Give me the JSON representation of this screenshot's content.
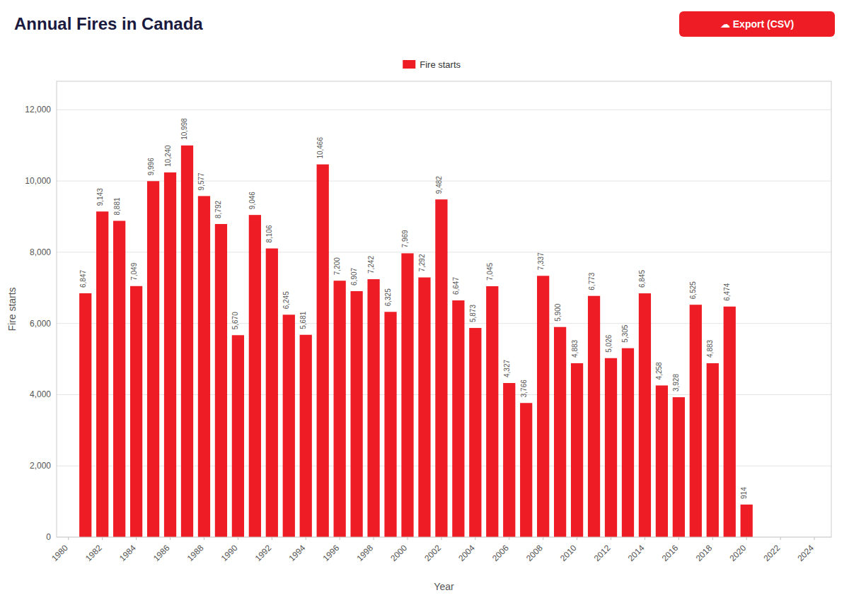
{
  "chart_data": {
    "type": "bar",
    "title": "Annual Fires in Canada",
    "xlabel": "Year",
    "ylabel": "Fire starts",
    "x": [
      1981,
      1982,
      1983,
      1984,
      1985,
      1986,
      1987,
      1988,
      1989,
      1990,
      1991,
      1992,
      1993,
      1994,
      1995,
      1996,
      1997,
      1998,
      1999,
      2000,
      2001,
      2002,
      2003,
      2004,
      2005,
      2006,
      2007,
      2008,
      2009,
      2010,
      2011,
      2012,
      2013,
      2014,
      2015,
      2016,
      2017,
      2018,
      2019,
      2020
    ],
    "series": [
      {
        "name": "Fire starts",
        "color": "#ee1c25",
        "values": [
          6847,
          9143,
          8881,
          7049,
          9996,
          10240,
          10998,
          9577,
          8792,
          5670,
          9046,
          8106,
          6245,
          5681,
          10466,
          7200,
          6907,
          7242,
          6325,
          7969,
          7292,
          9482,
          6647,
          5873,
          7045,
          4327,
          3766,
          7337,
          5900,
          4883,
          6773,
          5026,
          5305,
          6845,
          4258,
          3928,
          6525,
          4883,
          6474,
          914
        ],
        "value_labels": [
          "6,847",
          "9,143",
          "8,881",
          "7,049",
          "9,996",
          "10,240",
          "10,998",
          "9,577",
          "8,792",
          "5,670",
          "9,046",
          "8,106",
          "6,245",
          "5,681",
          "10,466",
          "7,200",
          "6,907",
          "7,242",
          "6,325",
          "7,969",
          "7,292",
          "9,482",
          "6,647",
          "5,873",
          "7,045",
          "4,327",
          "3,766",
          "7,337",
          "5,900",
          "4,883",
          "6,773",
          "5,026",
          "5,305",
          "6,845",
          "4,258",
          "3,928",
          "6,525",
          "4,883",
          "6,474",
          "914"
        ]
      }
    ],
    "xlim": [
      1979.3,
      2025.0
    ],
    "xticks": [
      1980,
      1982,
      1984,
      1986,
      1988,
      1990,
      1992,
      1994,
      1996,
      1998,
      2000,
      2002,
      2004,
      2006,
      2008,
      2010,
      2012,
      2014,
      2016,
      2018,
      2020,
      2022,
      2024
    ],
    "ylim": [
      0,
      12800
    ],
    "yticks": [
      0,
      {
        "value": 2000,
        "label": "2,000"
      },
      {
        "value": 4000,
        "label": "4,000"
      },
      {
        "value": 6000,
        "label": "6,000"
      },
      {
        "value": 8000,
        "label": "8,000"
      },
      {
        "value": 10000,
        "label": "10,000"
      },
      {
        "value": 12000,
        "label": "12,000"
      }
    ],
    "grid": true,
    "legend": "top",
    "data_labels": true,
    "annotations": [
      "☁  Export (CSV)"
    ]
  }
}
